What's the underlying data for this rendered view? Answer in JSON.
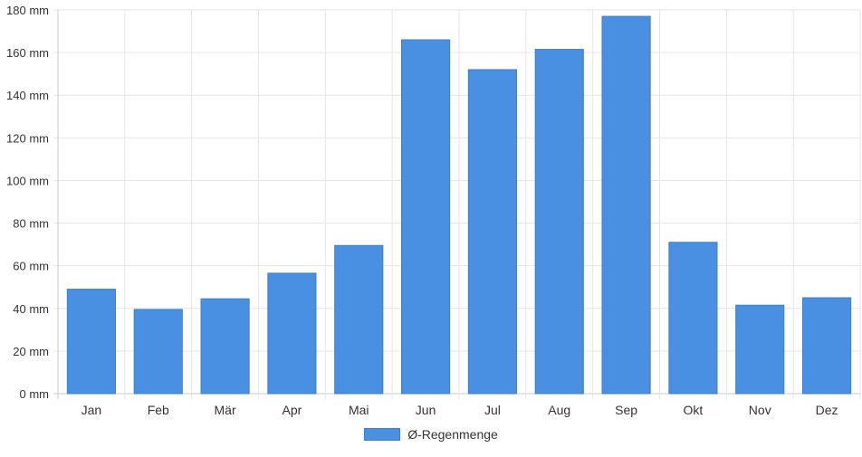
{
  "chart_data": {
    "type": "bar",
    "categories": [
      "Jan",
      "Feb",
      "Mär",
      "Apr",
      "Mai",
      "Jun",
      "Jul",
      "Aug",
      "Sep",
      "Okt",
      "Nov",
      "Dez"
    ],
    "series": [
      {
        "name": "Ø-Regenmenge",
        "values": [
          49,
          39.5,
          44.5,
          56.5,
          69.5,
          166,
          152,
          161.5,
          177,
          71,
          41.5,
          45
        ],
        "color": "#4a90e2"
      }
    ],
    "y_ticks": [
      "0 mm",
      "20 mm",
      "40 mm",
      "60 mm",
      "80 mm",
      "100 mm",
      "120 mm",
      "140 mm",
      "160 mm",
      "180 mm"
    ],
    "ylim": [
      0,
      180
    ],
    "unit": "mm",
    "grid": true,
    "legend_position": "bottom"
  }
}
